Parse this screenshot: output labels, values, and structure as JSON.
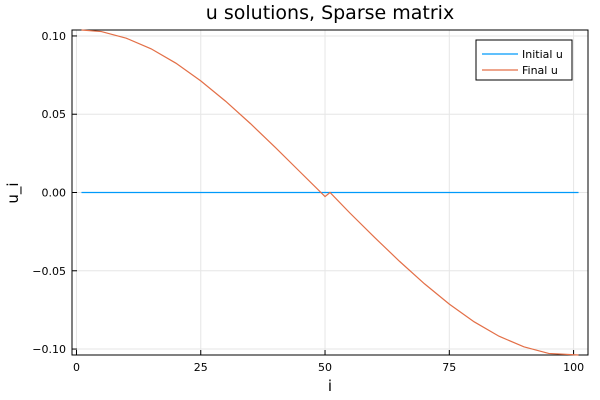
{
  "chart_data": {
    "type": "line",
    "title": "u solutions, Sparse matrix",
    "xlabel": "i",
    "ylabel": "u_i",
    "xlim": [
      -0.9,
      102.9
    ],
    "ylim": [
      -0.1038,
      0.1038
    ],
    "xticks": [
      0,
      25,
      50,
      75,
      100
    ],
    "xtick_labels": [
      "0",
      "25",
      "50",
      "75",
      "100"
    ],
    "yticks": [
      -0.1,
      -0.05,
      0.0,
      0.05,
      0.1
    ],
    "ytick_labels": [
      "−0.10",
      "−0.05",
      "0.00",
      "0.05",
      "0.10"
    ],
    "grid": true,
    "legend_position": "top-right",
    "series": [
      {
        "name": "Initial u",
        "color": "#009AFA",
        "x": [
          1,
          101
        ],
        "y": [
          0.0,
          0.0
        ]
      },
      {
        "name": "Final u",
        "color": "#E36F47",
        "x": [
          1,
          5,
          10,
          15,
          20,
          25,
          30,
          35,
          40,
          45,
          50,
          51,
          55,
          60,
          65,
          70,
          75,
          80,
          85,
          90,
          95,
          101
        ],
        "y": [
          0.1038,
          0.1028,
          0.0986,
          0.0918,
          0.0826,
          0.0713,
          0.0583,
          0.044,
          0.0288,
          0.0131,
          -0.0026,
          0.0,
          -0.0131,
          -0.0288,
          -0.044,
          -0.0583,
          -0.0713,
          -0.0826,
          -0.0918,
          -0.0986,
          -0.1028,
          -0.1038
        ]
      }
    ]
  }
}
